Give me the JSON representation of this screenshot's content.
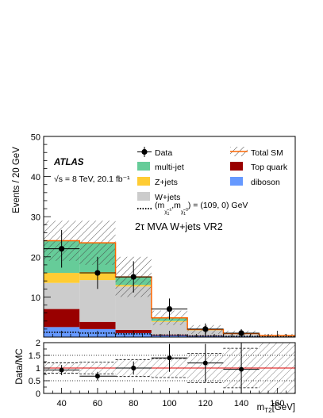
{
  "chart_data": {
    "type": "bar",
    "stacked": true,
    "experiment": "ATLAS",
    "energy_label": "√s = 8 TeV, 20.1 fb⁻¹",
    "region_label": "2τ MVA W+jets VR2",
    "xlabel": "m_T2 [GeV]",
    "ylabel": "Events / 20 GeV",
    "ratio_ylabel": "Data/MC",
    "xlim": [
      30,
      170
    ],
    "ylim": [
      0,
      50
    ],
    "ratio_ylim": [
      0,
      2
    ],
    "x_ticks": [
      40,
      60,
      80,
      100,
      120,
      140,
      160
    ],
    "y_ticks": [
      10,
      20,
      30,
      40,
      50
    ],
    "ratio_ticks": [
      0,
      0.5,
      1,
      1.5,
      2
    ],
    "bins": [
      [
        30,
        50
      ],
      [
        50,
        70
      ],
      [
        70,
        90
      ],
      [
        90,
        110
      ],
      [
        110,
        130
      ],
      [
        130,
        150
      ],
      [
        150,
        170
      ]
    ],
    "x_centers": [
      40,
      60,
      80,
      100,
      120,
      140,
      160
    ],
    "series": [
      {
        "name": "diboson",
        "color": "#6699ff",
        "values": [
          2.5,
          2.0,
          1.0,
          0.4,
          0.3,
          0.2,
          0.1
        ]
      },
      {
        "name": "Top quark",
        "color": "#990000",
        "values": [
          4.5,
          1.8,
          0.8,
          0.2,
          0.1,
          0.0,
          0.0
        ]
      },
      {
        "name": "W+jets",
        "color": "#cccccc",
        "values": [
          6.5,
          10.4,
          10.8,
          3.2,
          1.3,
          0.7,
          0.3
        ]
      },
      {
        "name": "Z+jets",
        "color": "#ffcc33",
        "values": [
          2.5,
          2.0,
          0.4,
          0.2,
          0.1,
          0.0,
          0.0
        ]
      },
      {
        "name": "multi-jet",
        "color": "#66cc99",
        "values": [
          8.0,
          7.3,
          2.0,
          0.8,
          0.1,
          0.0,
          0.0
        ]
      }
    ],
    "total_sm": {
      "name": "Total SM",
      "color": "#ff6600",
      "values": [
        24,
        23.5,
        15,
        4.8,
        1.9,
        0.9,
        0.4
      ],
      "uncertainty": [
        5,
        5.5,
        5,
        1.8,
        1.1,
        0.7,
        0.4
      ]
    },
    "data": {
      "name": "Data",
      "values": [
        22,
        16,
        15,
        7,
        2,
        1,
        0
      ],
      "errors": [
        4.7,
        4.0,
        3.9,
        2.6,
        1.4,
        1.0,
        0
      ]
    },
    "signal": {
      "name": "(m_χ̃1±, m_χ̃10) = (109, 0) GeV",
      "values": [
        1.2,
        1.0,
        0.8,
        0.5,
        0.3,
        0.2,
        0.1
      ]
    },
    "ratio": {
      "values": [
        0.92,
        0.68,
        1.0,
        1.4,
        1.2,
        0.95
      ],
      "errors": [
        0.2,
        0.17,
        0.26,
        0.55,
        0.75,
        1.1
      ]
    },
    "legend": {
      "placement": "top",
      "entries": [
        "Data",
        "Total SM",
        "multi-jet",
        "Top quark",
        "Z+jets",
        "diboson",
        "W+jets",
        "(m_χ̃1±, m_χ̃10) = (109, 0) GeV"
      ]
    }
  }
}
